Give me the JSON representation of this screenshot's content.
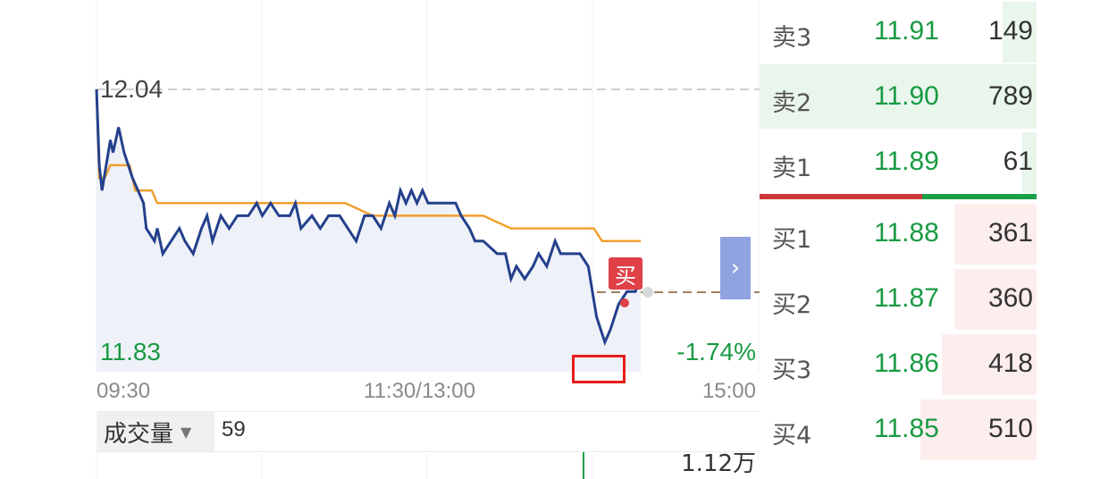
{
  "chart": {
    "top_price": "12.04",
    "bottom_price": "11.83",
    "change_pct": "-1.74%",
    "time_open": "09:30",
    "time_mid": "11:30/13:00",
    "time_close": "15:00",
    "buy_badge": "买",
    "expand_icon": "chevron-right-icon"
  },
  "volume": {
    "selector_label": "成交量",
    "value": "59",
    "max_label": "1.12万"
  },
  "order_book": {
    "asks": [
      {
        "label": "卖3",
        "price": "11.91",
        "volume": "149",
        "depth": 0.19
      },
      {
        "label": "卖2",
        "price": "11.90",
        "volume": "789",
        "depth": 1.0
      },
      {
        "label": "卖1",
        "price": "11.89",
        "volume": "61",
        "depth": 0.08
      }
    ],
    "bids": [
      {
        "label": "买1",
        "price": "11.88",
        "volume": "361",
        "depth": 0.46
      },
      {
        "label": "买2",
        "price": "11.87",
        "volume": "360",
        "depth": 0.46
      },
      {
        "label": "买3",
        "price": "11.86",
        "volume": "418",
        "depth": 0.53
      },
      {
        "label": "买4",
        "price": "11.85",
        "volume": "510",
        "depth": 0.65
      }
    ],
    "colors": {
      "ask_depth": "#e8f6ec",
      "bid_depth": "#fdeeee",
      "price_green": "#1a9a44"
    }
  },
  "chart_data": {
    "type": "line",
    "y_range": [
      11.83,
      12.04
    ],
    "x_range_minutes": [
      0,
      240
    ],
    "reference_price": 11.89,
    "series": [
      {
        "values": [
          [
            0,
            12.04
          ],
          [
            1,
            11.98
          ],
          [
            2,
            11.96
          ],
          [
            5,
            12.0
          ],
          [
            6,
            11.99
          ],
          [
            8,
            12.01
          ],
          [
            10,
            11.99
          ],
          [
            13,
            11.97
          ],
          [
            17,
            11.95
          ],
          [
            18,
            11.93
          ],
          [
            21,
            11.92
          ],
          [
            22,
            11.93
          ],
          [
            24,
            11.91
          ],
          [
            27,
            11.92
          ],
          [
            30,
            11.93
          ],
          [
            32,
            11.92
          ],
          [
            35,
            11.91
          ],
          [
            38,
            11.93
          ],
          [
            40,
            11.94
          ],
          [
            42,
            11.92
          ],
          [
            45,
            11.94
          ],
          [
            48,
            11.93
          ],
          [
            51,
            11.94
          ],
          [
            55,
            11.94
          ],
          [
            58,
            11.95
          ],
          [
            60,
            11.94
          ],
          [
            63,
            11.95
          ],
          [
            66,
            11.94
          ],
          [
            70,
            11.94
          ],
          [
            72,
            11.95
          ],
          [
            74,
            11.93
          ],
          [
            78,
            11.94
          ],
          [
            81,
            11.93
          ],
          [
            84,
            11.94
          ],
          [
            88,
            11.94
          ],
          [
            91,
            11.93
          ],
          [
            94,
            11.92
          ],
          [
            97,
            11.94
          ],
          [
            100,
            11.94
          ],
          [
            103,
            11.93
          ],
          [
            106,
            11.95
          ],
          [
            108,
            11.94
          ],
          [
            110,
            11.96
          ],
          [
            112,
            11.95
          ],
          [
            114,
            11.96
          ],
          [
            116,
            11.95
          ],
          [
            118,
            11.96
          ],
          [
            120,
            11.95
          ],
          [
            125,
            11.95
          ],
          [
            130,
            11.95
          ],
          [
            132,
            11.94
          ],
          [
            135,
            11.93
          ],
          [
            137,
            11.92
          ],
          [
            140,
            11.92
          ],
          [
            145,
            11.91
          ],
          [
            148,
            11.91
          ],
          [
            150,
            11.89
          ],
          [
            152,
            11.9
          ],
          [
            155,
            11.89
          ],
          [
            158,
            11.9
          ],
          [
            160,
            11.91
          ],
          [
            163,
            11.9
          ],
          [
            166,
            11.92
          ],
          [
            168,
            11.91
          ],
          [
            170,
            11.91
          ],
          [
            175,
            11.91
          ],
          [
            178,
            11.9
          ],
          [
            181,
            11.86
          ],
          [
            184,
            11.84
          ],
          [
            186,
            11.85
          ],
          [
            189,
            11.87
          ],
          [
            192,
            11.88
          ],
          [
            195,
            11.88
          ],
          [
            197,
            11.89
          ]
        ]
      },
      {
        "values": [
          [
            0,
            12.04
          ],
          [
            1,
            11.97
          ],
          [
            3,
            11.97
          ],
          [
            5,
            11.98
          ],
          [
            10,
            11.98
          ],
          [
            12,
            11.98
          ],
          [
            14,
            11.96
          ],
          [
            20,
            11.96
          ],
          [
            22,
            11.95
          ],
          [
            50,
            11.95
          ],
          [
            90,
            11.95
          ],
          [
            100,
            11.94
          ],
          [
            140,
            11.94
          ],
          [
            150,
            11.93
          ],
          [
            180,
            11.93
          ],
          [
            183,
            11.92
          ],
          [
            197,
            11.92
          ]
        ]
      }
    ]
  }
}
